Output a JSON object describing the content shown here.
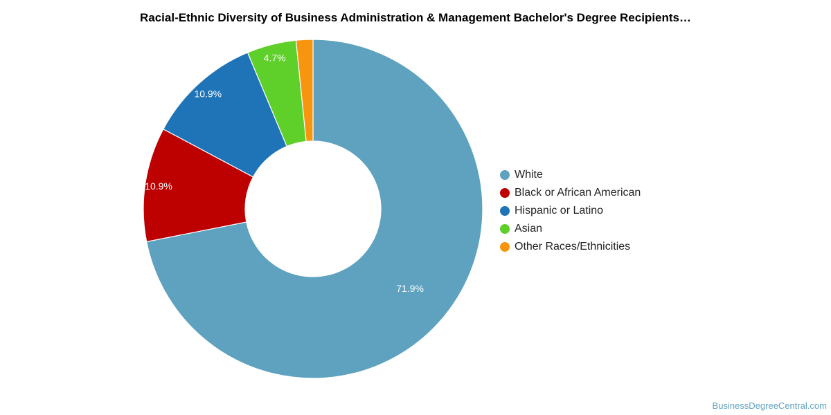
{
  "chart_data": {
    "type": "pie",
    "title": "Racial-Ethnic Diversity of Business Administration & Management Bachelor's Degree Recipients…",
    "categories": [
      "White",
      "Black or African American",
      "Hispanic or Latino",
      "Asian",
      "Other Races/Ethnicities"
    ],
    "values": [
      71.9,
      10.9,
      10.9,
      4.7,
      1.6
    ],
    "data_labels": [
      "71.9%",
      "10.9%",
      "10.9%",
      "4.7%",
      ""
    ],
    "colors": [
      "#5ea2bf",
      "#bd0000",
      "#1f73b7",
      "#5fcf29",
      "#f7950f"
    ],
    "donut": true,
    "legend_position": "right"
  },
  "source": "BusinessDegreeCentral.com"
}
